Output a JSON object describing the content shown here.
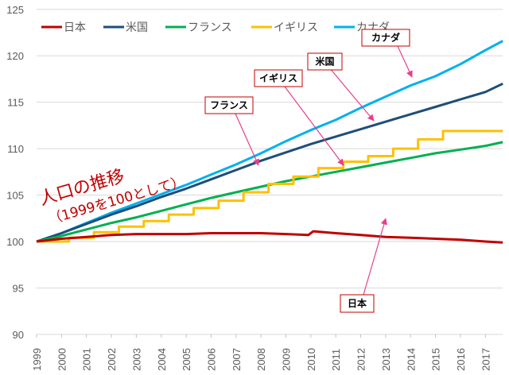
{
  "chart_data": {
    "type": "line",
    "title": "人口の推移",
    "subtitle": "（1999を100として）",
    "xlabel": "",
    "ylabel": "",
    "ylim": [
      90,
      125
    ],
    "xlim": [
      1999,
      2017.7
    ],
    "yticks": [
      "90",
      "95",
      "100",
      "105",
      "110",
      "115",
      "120",
      "125"
    ],
    "xticks": [
      "1999",
      "2000",
      "2001",
      "2002",
      "2003",
      "2004",
      "2005",
      "2006",
      "2007",
      "2008",
      "2009",
      "2010",
      "2011",
      "2012",
      "2013",
      "2014",
      "2015",
      "2016",
      "2017"
    ],
    "grid": true,
    "legend_position": "top-left",
    "series": [
      {
        "name": "日本",
        "color": "#c00000",
        "x": [
          1999,
          2000,
          2001,
          2002,
          2003,
          2004,
          2005,
          2006,
          2007,
          2008,
          2009,
          2009.9,
          2010.1,
          2011,
          2012,
          2013,
          2014,
          2015,
          2016,
          2017,
          2017.7
        ],
        "y": [
          100,
          100.3,
          100.5,
          100.7,
          100.8,
          100.8,
          100.8,
          100.9,
          100.9,
          100.9,
          100.8,
          100.7,
          101.1,
          100.9,
          100.7,
          100.5,
          100.4,
          100.3,
          100.2,
          100.0,
          99.9
        ]
      },
      {
        "name": "米国",
        "color": "#1f4e79",
        "x": [
          1999,
          2000,
          2001,
          2002,
          2003,
          2004,
          2005,
          2006,
          2007,
          2008,
          2009,
          2010,
          2011,
          2012,
          2013,
          2014,
          2015,
          2016,
          2017,
          2017.7
        ],
        "y": [
          100,
          100.9,
          101.9,
          102.9,
          103.8,
          104.8,
          105.7,
          106.7,
          107.7,
          108.7,
          109.6,
          110.5,
          111.3,
          112.1,
          112.9,
          113.7,
          114.5,
          115.3,
          116.1,
          117.0
        ]
      },
      {
        "name": "フランス",
        "color": "#00b050",
        "x": [
          1999,
          2000,
          2001,
          2002,
          2003,
          2004,
          2005,
          2006,
          2007,
          2008,
          2009,
          2010,
          2011,
          2012,
          2013,
          2014,
          2015,
          2016,
          2017,
          2017.7
        ],
        "y": [
          100,
          100.6,
          101.3,
          102.0,
          102.6,
          103.3,
          104.0,
          104.7,
          105.3,
          105.9,
          106.5,
          107.0,
          107.5,
          108.0,
          108.5,
          109.0,
          109.5,
          109.9,
          110.3,
          110.7
        ]
      },
      {
        "name": "イギリス",
        "color": "#ffc000",
        "step": true,
        "x": [
          1999,
          2000.3,
          2001.3,
          2002.3,
          2003.3,
          2004.3,
          2005.3,
          2006.3,
          2007.3,
          2008.3,
          2009.3,
          2010.3,
          2011.3,
          2012.3,
          2013.3,
          2014.3,
          2015.3,
          2017.7
        ],
        "y": [
          100,
          100.4,
          101.0,
          101.6,
          102.2,
          102.9,
          103.6,
          104.4,
          105.3,
          106.2,
          107.0,
          107.9,
          108.6,
          109.2,
          110.0,
          111.0,
          111.9,
          111.9
        ]
      },
      {
        "name": "カナダ",
        "color": "#00b0f0",
        "x": [
          1999,
          2000,
          2001,
          2002,
          2003,
          2004,
          2005,
          2006,
          2007,
          2008,
          2009,
          2010,
          2011,
          2012,
          2013,
          2014,
          2015,
          2016,
          2017,
          2017.7
        ],
        "y": [
          100,
          100.9,
          102.0,
          103.1,
          104.1,
          105.1,
          106.1,
          107.2,
          108.3,
          109.5,
          110.8,
          112.0,
          113.1,
          114.4,
          115.6,
          116.8,
          117.8,
          119.1,
          120.6,
          121.6
        ]
      }
    ],
    "annotations": [
      {
        "label": "カナダ",
        "target_series": "カナダ"
      },
      {
        "label": "米国",
        "target_series": "米国"
      },
      {
        "label": "イギリス",
        "target_series": "イギリス"
      },
      {
        "label": "フランス",
        "target_series": "フランス"
      },
      {
        "label": "日本",
        "target_series": "日本"
      }
    ]
  }
}
